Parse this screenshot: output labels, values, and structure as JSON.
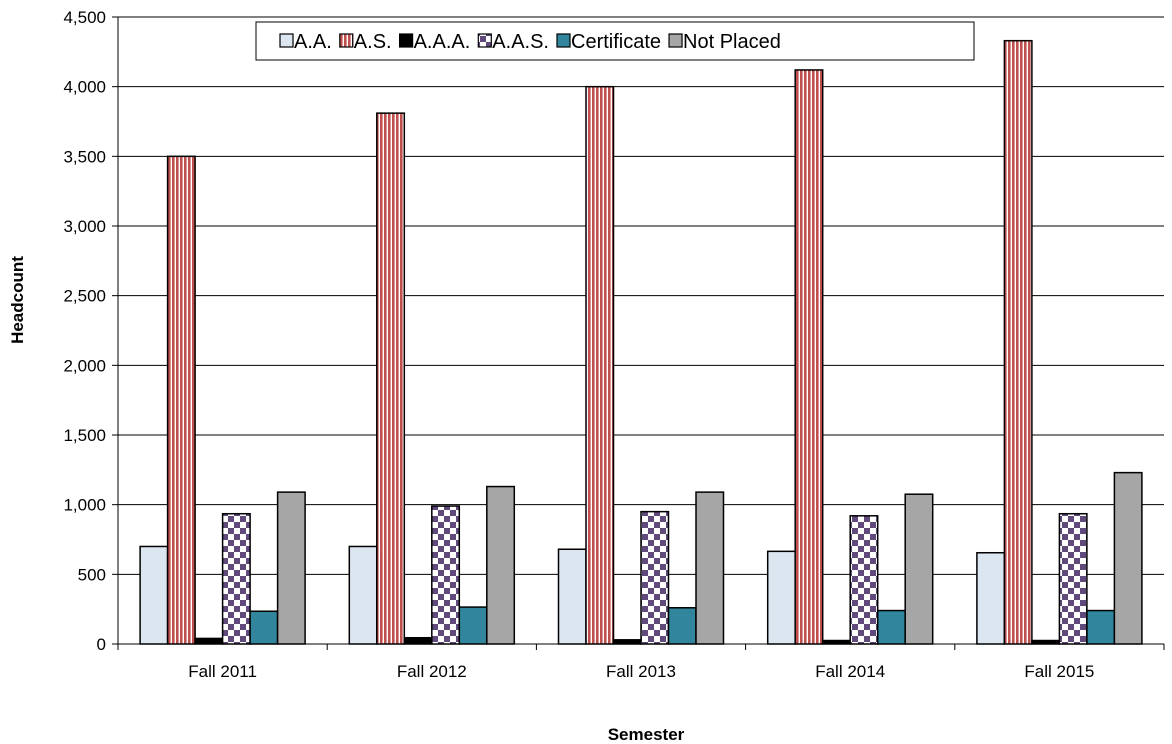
{
  "chart_data": {
    "type": "bar",
    "title": "",
    "xlabel": "Semester",
    "ylabel": "Headcount",
    "ylim": [
      0,
      4500
    ],
    "ytick_step": 500,
    "grid": true,
    "legend_position": "top",
    "categories": [
      "Fall 2011",
      "Fall 2012",
      "Fall 2013",
      "Fall 2014",
      "Fall 2015"
    ],
    "series": [
      {
        "name": "A.A.",
        "values": [
          700,
          700,
          680,
          665,
          655
        ],
        "color": "#dce6f1",
        "pattern": "solid"
      },
      {
        "name": "A.S.",
        "values": [
          3500,
          3810,
          4000,
          4120,
          4330
        ],
        "color": "#c0504d",
        "pattern": "vertical-stripes"
      },
      {
        "name": "A.A.A.",
        "values": [
          40,
          45,
          30,
          25,
          25
        ],
        "color": "#000000",
        "pattern": "solid"
      },
      {
        "name": "A.A.S.",
        "values": [
          935,
          990,
          950,
          920,
          935
        ],
        "color": "#604a7b",
        "pattern": "checker"
      },
      {
        "name": "Certificate",
        "values": [
          235,
          265,
          260,
          240,
          240
        ],
        "color": "#31859c",
        "pattern": "solid"
      },
      {
        "name": "Not Placed",
        "values": [
          1090,
          1130,
          1090,
          1075,
          1230
        ],
        "color": "#a6a6a6",
        "pattern": "solid"
      }
    ]
  }
}
